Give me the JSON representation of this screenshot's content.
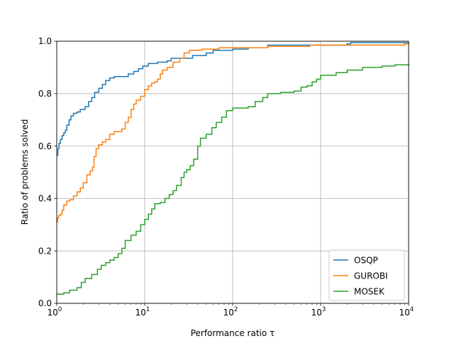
{
  "chart_data": {
    "type": "line",
    "title": "",
    "xlabel": "Performance ratio τ",
    "ylabel": "Ratio of problems solved",
    "xscale": "log",
    "xlim": [
      1,
      10000
    ],
    "ylim": [
      0,
      1.0
    ],
    "xticks": [
      {
        "value": 1,
        "base": "10",
        "exp": "0"
      },
      {
        "value": 10,
        "base": "10",
        "exp": "1"
      },
      {
        "value": 100,
        "base": "10",
        "exp": "2"
      },
      {
        "value": 1000,
        "base": "10",
        "exp": "3"
      },
      {
        "value": 10000,
        "base": "10",
        "exp": "4"
      }
    ],
    "yticks": [
      {
        "value": 0.0,
        "label": "0.0"
      },
      {
        "value": 0.2,
        "label": "0.2"
      },
      {
        "value": 0.4,
        "label": "0.4"
      },
      {
        "value": 0.6,
        "label": "0.6"
      },
      {
        "value": 0.8,
        "label": "0.8"
      },
      {
        "value": 1.0,
        "label": "1.0"
      }
    ],
    "grid": true,
    "legend_position": "bottom-right",
    "series": [
      {
        "name": "OSQP",
        "color": "#1f77b4",
        "points": [
          [
            1.0,
            0.565
          ],
          [
            1.03,
            0.59
          ],
          [
            1.06,
            0.61
          ],
          [
            1.1,
            0.625
          ],
          [
            1.15,
            0.64
          ],
          [
            1.2,
            0.65
          ],
          [
            1.25,
            0.66
          ],
          [
            1.3,
            0.68
          ],
          [
            1.38,
            0.7
          ],
          [
            1.45,
            0.715
          ],
          [
            1.55,
            0.725
          ],
          [
            1.7,
            0.73
          ],
          [
            1.85,
            0.74
          ],
          [
            2.1,
            0.75
          ],
          [
            2.3,
            0.77
          ],
          [
            2.5,
            0.785
          ],
          [
            2.7,
            0.805
          ],
          [
            3.0,
            0.82
          ],
          [
            3.3,
            0.835
          ],
          [
            3.6,
            0.85
          ],
          [
            4.0,
            0.86
          ],
          [
            4.5,
            0.865
          ],
          [
            5.5,
            0.865
          ],
          [
            6.5,
            0.875
          ],
          [
            7.5,
            0.885
          ],
          [
            8.5,
            0.895
          ],
          [
            9.5,
            0.905
          ],
          [
            11,
            0.915
          ],
          [
            13,
            0.915
          ],
          [
            14,
            0.92
          ],
          [
            18,
            0.925
          ],
          [
            20,
            0.935
          ],
          [
            30,
            0.935
          ],
          [
            35,
            0.945
          ],
          [
            50,
            0.955
          ],
          [
            60,
            0.965
          ],
          [
            100,
            0.97
          ],
          [
            150,
            0.975
          ],
          [
            250,
            0.985
          ],
          [
            700,
            0.985
          ],
          [
            2000,
            0.99
          ],
          [
            2200,
            0.995
          ],
          [
            10000,
            0.995
          ]
        ]
      },
      {
        "name": "GUROBI",
        "color": "#ff7f0e",
        "points": [
          [
            1.0,
            0.31
          ],
          [
            1.02,
            0.325
          ],
          [
            1.05,
            0.335
          ],
          [
            1.1,
            0.34
          ],
          [
            1.15,
            0.355
          ],
          [
            1.2,
            0.375
          ],
          [
            1.3,
            0.39
          ],
          [
            1.4,
            0.395
          ],
          [
            1.55,
            0.41
          ],
          [
            1.7,
            0.425
          ],
          [
            1.85,
            0.44
          ],
          [
            2.0,
            0.46
          ],
          [
            2.2,
            0.49
          ],
          [
            2.4,
            0.505
          ],
          [
            2.55,
            0.52
          ],
          [
            2.65,
            0.56
          ],
          [
            2.8,
            0.59
          ],
          [
            3.0,
            0.605
          ],
          [
            3.3,
            0.615
          ],
          [
            3.6,
            0.625
          ],
          [
            4.0,
            0.645
          ],
          [
            4.5,
            0.655
          ],
          [
            5.5,
            0.665
          ],
          [
            6.0,
            0.69
          ],
          [
            6.5,
            0.71
          ],
          [
            7.0,
            0.74
          ],
          [
            7.5,
            0.76
          ],
          [
            8.0,
            0.775
          ],
          [
            9.0,
            0.79
          ],
          [
            10,
            0.815
          ],
          [
            11,
            0.83
          ],
          [
            12,
            0.84
          ],
          [
            13,
            0.845
          ],
          [
            14,
            0.855
          ],
          [
            15,
            0.875
          ],
          [
            16,
            0.89
          ],
          [
            18,
            0.9
          ],
          [
            21,
            0.92
          ],
          [
            25,
            0.935
          ],
          [
            28,
            0.955
          ],
          [
            32,
            0.965
          ],
          [
            45,
            0.97
          ],
          [
            70,
            0.975
          ],
          [
            100,
            0.975
          ],
          [
            250,
            0.98
          ],
          [
            750,
            0.985
          ],
          [
            1000,
            0.985
          ],
          [
            9000,
            0.99
          ],
          [
            10000,
            0.995
          ]
        ]
      },
      {
        "name": "MOSEK",
        "color": "#2ca02c",
        "points": [
          [
            1.0,
            0.035
          ],
          [
            1.2,
            0.04
          ],
          [
            1.4,
            0.05
          ],
          [
            1.7,
            0.06
          ],
          [
            1.9,
            0.08
          ],
          [
            2.1,
            0.095
          ],
          [
            2.5,
            0.11
          ],
          [
            2.9,
            0.13
          ],
          [
            3.2,
            0.145
          ],
          [
            3.6,
            0.155
          ],
          [
            4.0,
            0.165
          ],
          [
            4.5,
            0.175
          ],
          [
            5.0,
            0.19
          ],
          [
            5.5,
            0.21
          ],
          [
            6.0,
            0.24
          ],
          [
            7.0,
            0.26
          ],
          [
            8.0,
            0.275
          ],
          [
            9.0,
            0.3
          ],
          [
            10,
            0.32
          ],
          [
            11,
            0.34
          ],
          [
            12,
            0.36
          ],
          [
            13,
            0.38
          ],
          [
            15,
            0.385
          ],
          [
            17,
            0.4
          ],
          [
            19,
            0.415
          ],
          [
            21,
            0.43
          ],
          [
            23,
            0.45
          ],
          [
            26,
            0.48
          ],
          [
            28,
            0.5
          ],
          [
            30,
            0.51
          ],
          [
            33,
            0.525
          ],
          [
            36,
            0.55
          ],
          [
            40,
            0.6
          ],
          [
            43,
            0.63
          ],
          [
            50,
            0.645
          ],
          [
            58,
            0.67
          ],
          [
            65,
            0.69
          ],
          [
            75,
            0.71
          ],
          [
            85,
            0.735
          ],
          [
            100,
            0.745
          ],
          [
            150,
            0.75
          ],
          [
            180,
            0.77
          ],
          [
            220,
            0.785
          ],
          [
            250,
            0.8
          ],
          [
            350,
            0.805
          ],
          [
            500,
            0.81
          ],
          [
            600,
            0.825
          ],
          [
            700,
            0.83
          ],
          [
            800,
            0.845
          ],
          [
            900,
            0.855
          ],
          [
            1000,
            0.87
          ],
          [
            1500,
            0.88
          ],
          [
            2000,
            0.89
          ],
          [
            3000,
            0.9
          ],
          [
            5000,
            0.905
          ],
          [
            7000,
            0.91
          ],
          [
            10000,
            0.915
          ]
        ]
      }
    ]
  }
}
